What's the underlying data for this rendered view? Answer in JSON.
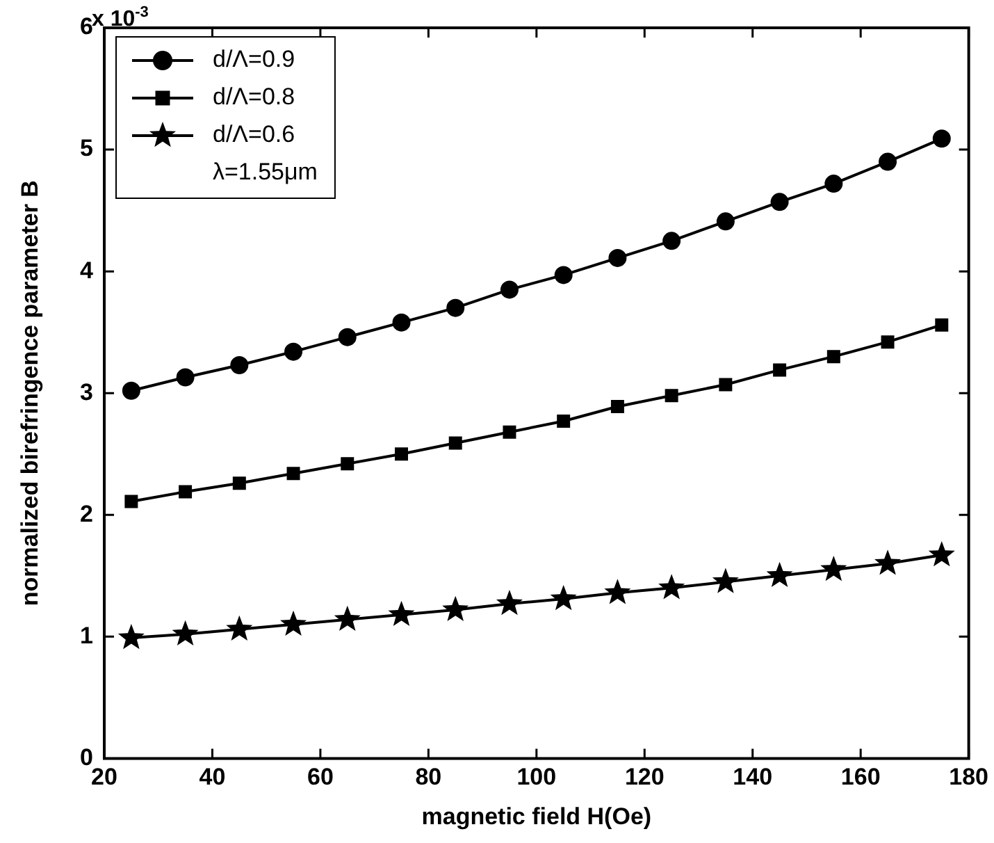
{
  "chart_data": {
    "type": "line",
    "xlabel": "magnetic field H(Oe)",
    "ylabel": "normalized birefringence parameter B",
    "annotations": [
      "x 10$^{-3}$",
      "λ=1.55μm"
    ],
    "x": [
      25,
      35,
      45,
      55,
      65,
      75,
      85,
      95,
      105,
      115,
      125,
      135,
      145,
      155,
      165,
      175
    ],
    "series": [
      {
        "name": "d/Λ=0.9",
        "color": "#000000",
        "marker": "circle",
        "values": [
          3.02,
          3.13,
          3.23,
          3.34,
          3.46,
          3.58,
          3.7,
          3.85,
          3.97,
          4.11,
          4.25,
          4.41,
          4.57,
          4.72,
          4.9,
          5.09
        ]
      },
      {
        "name": "d/Λ=0.8",
        "color": "#000000",
        "marker": "square",
        "values": [
          2.11,
          2.19,
          2.26,
          2.34,
          2.42,
          2.5,
          2.59,
          2.68,
          2.77,
          2.89,
          2.98,
          3.07,
          3.19,
          3.3,
          3.42,
          3.56
        ]
      },
      {
        "name": "d/Λ=0.6",
        "color": "#000000",
        "marker": "star",
        "values": [
          0.99,
          1.02,
          1.06,
          1.1,
          1.14,
          1.18,
          1.22,
          1.27,
          1.31,
          1.36,
          1.4,
          1.45,
          1.5,
          1.55,
          1.6,
          1.67
        ]
      }
    ],
    "xlim": [
      20,
      180
    ],
    "xticks": [
      20,
      40,
      60,
      80,
      100,
      120,
      140,
      160,
      180
    ],
    "ylim": [
      0,
      6
    ],
    "yticks": [
      0,
      1,
      2,
      3,
      4,
      5,
      6
    ],
    "legend": "top left",
    "line_style": "solid"
  }
}
